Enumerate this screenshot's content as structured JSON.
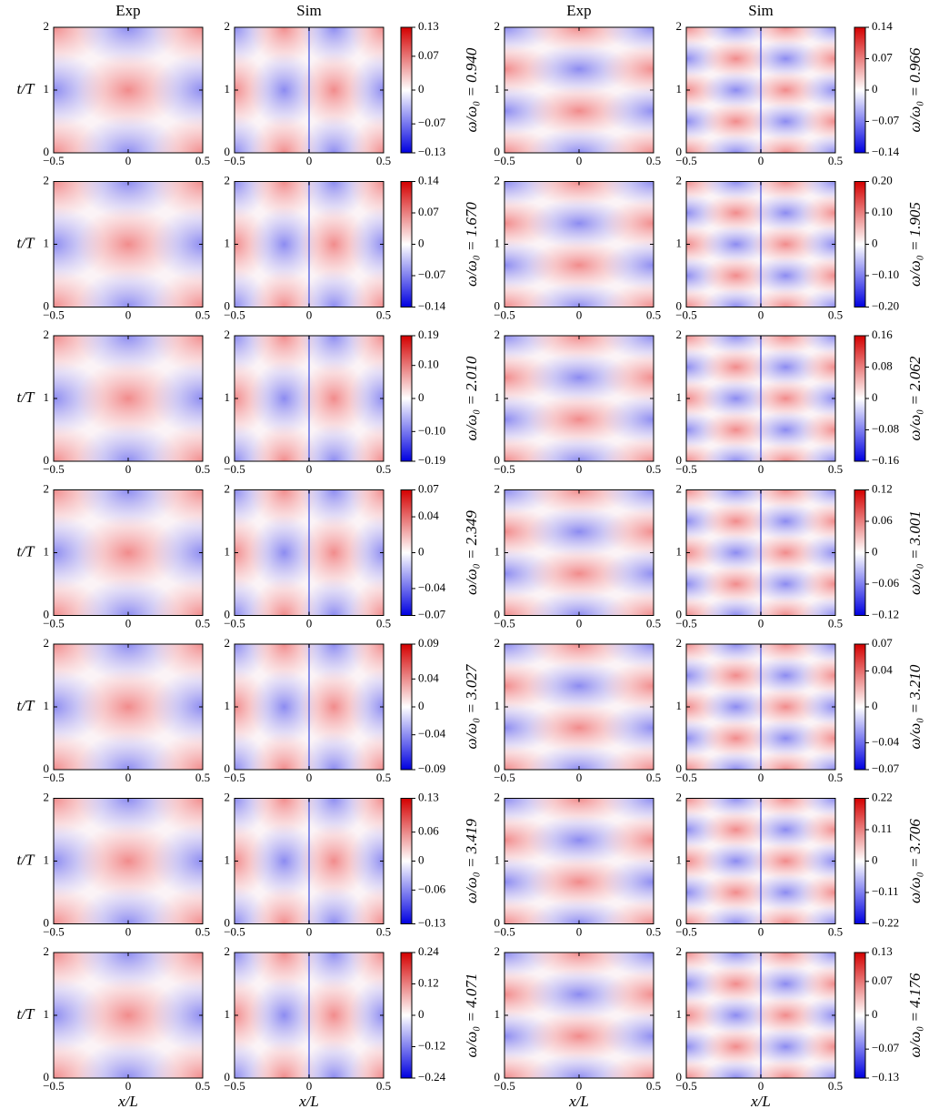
{
  "chart_data": [
    {
      "type": "heatmap",
      "panel_titles": [
        "Exp",
        "Sim"
      ],
      "ylabel": "t/T",
      "annotation": "ω/ω₀ = 0.940",
      "xlim": [
        -0.5,
        0.5
      ],
      "ylim": [
        0,
        2
      ],
      "xticks": [
        {
          "value": -0.5,
          "label": "−0.5"
        },
        0,
        0.5
      ],
      "yticks": [
        0,
        1,
        2
      ],
      "colorbar": {
        "lim": [
          -0.13,
          0.13
        ],
        "ticks": [
          0.13,
          0.07,
          0,
          {
            "value": -0.07,
            "label": "−0.07"
          },
          {
            "value": -0.13,
            "label": "−0.13"
          }
        ]
      }
    },
    {
      "type": "heatmap",
      "panel_titles": [
        "Exp",
        "Sim"
      ],
      "annotation": "ω/ω₀ = 0.966",
      "xlim": [
        -0.5,
        0.5
      ],
      "ylim": [
        0,
        2
      ],
      "xticks": [
        {
          "value": -0.5,
          "label": "−0.5"
        },
        0,
        0.5
      ],
      "yticks": [
        0,
        1,
        2
      ],
      "colorbar": {
        "lim": [
          -0.14,
          0.14
        ],
        "ticks": [
          0.14,
          0.07,
          0,
          {
            "value": -0.07,
            "label": "−0.07"
          },
          {
            "value": -0.14,
            "label": "−0.14"
          }
        ]
      }
    },
    {
      "type": "heatmap",
      "ylabel": "t/T",
      "annotation": "ω/ω₀ = 1.670",
      "xlim": [
        -0.5,
        0.5
      ],
      "ylim": [
        0,
        2
      ],
      "xticks": [
        {
          "value": -0.5,
          "label": "−0.5"
        },
        0,
        0.5
      ],
      "yticks": [
        0,
        1,
        2
      ],
      "colorbar": {
        "lim": [
          -0.14,
          0.14
        ],
        "ticks": [
          0.14,
          0.07,
          0,
          {
            "value": -0.07,
            "label": "−0.07"
          },
          {
            "value": -0.14,
            "label": "−0.14"
          }
        ]
      }
    },
    {
      "type": "heatmap",
      "annotation": "ω/ω₀ = 1.905",
      "xlim": [
        -0.5,
        0.5
      ],
      "ylim": [
        0,
        2
      ],
      "xticks": [
        {
          "value": -0.5,
          "label": "−0.5"
        },
        0,
        0.5
      ],
      "yticks": [
        0,
        1,
        2
      ],
      "colorbar": {
        "lim": [
          -0.2,
          0.2
        ],
        "ticks": [
          {
            "value": 0.2,
            "label": "0.20"
          },
          {
            "value": 0.1,
            "label": "0.10"
          },
          0,
          {
            "value": -0.1,
            "label": "−0.10"
          },
          {
            "value": -0.2,
            "label": "−0.20"
          }
        ]
      }
    },
    {
      "type": "heatmap",
      "ylabel": "t/T",
      "annotation": "ω/ω₀ = 2.010",
      "xlim": [
        -0.5,
        0.5
      ],
      "ylim": [
        0,
        2
      ],
      "xticks": [
        {
          "value": -0.5,
          "label": "−0.5"
        },
        0,
        0.5
      ],
      "yticks": [
        0,
        1,
        2
      ],
      "colorbar": {
        "lim": [
          -0.19,
          0.19
        ],
        "ticks": [
          0.19,
          {
            "value": 0.1,
            "label": "0.10"
          },
          0,
          {
            "value": -0.1,
            "label": "−0.10"
          },
          {
            "value": -0.19,
            "label": "−0.19"
          }
        ]
      }
    },
    {
      "type": "heatmap",
      "annotation": "ω/ω₀ = 2.062",
      "xlim": [
        -0.5,
        0.5
      ],
      "ylim": [
        0,
        2
      ],
      "xticks": [
        {
          "value": -0.5,
          "label": "−0.5"
        },
        0,
        0.5
      ],
      "yticks": [
        0,
        1,
        2
      ],
      "colorbar": {
        "lim": [
          -0.16,
          0.16
        ],
        "ticks": [
          0.16,
          0.08,
          0,
          {
            "value": -0.08,
            "label": "−0.08"
          },
          {
            "value": -0.16,
            "label": "−0.16"
          }
        ]
      }
    },
    {
      "type": "heatmap",
      "ylabel": "t/T",
      "annotation": "ω/ω₀ = 2.349",
      "xlim": [
        -0.5,
        0.5
      ],
      "ylim": [
        0,
        2
      ],
      "xticks": [
        {
          "value": -0.5,
          "label": "−0.5"
        },
        0,
        0.5
      ],
      "yticks": [
        0,
        1,
        2
      ],
      "colorbar": {
        "lim": [
          -0.07,
          0.07
        ],
        "ticks": [
          0.07,
          0.04,
          0,
          {
            "value": -0.04,
            "label": "−0.04"
          },
          {
            "value": -0.07,
            "label": "−0.07"
          }
        ]
      }
    },
    {
      "type": "heatmap",
      "annotation": "ω/ω₀ = 3.001",
      "xlim": [
        -0.5,
        0.5
      ],
      "ylim": [
        0,
        2
      ],
      "xticks": [
        {
          "value": -0.5,
          "label": "−0.5"
        },
        0,
        0.5
      ],
      "yticks": [
        0,
        1,
        2
      ],
      "colorbar": {
        "lim": [
          -0.12,
          0.12
        ],
        "ticks": [
          0.12,
          0.06,
          0,
          {
            "value": -0.06,
            "label": "−0.06"
          },
          {
            "value": -0.12,
            "label": "−0.12"
          }
        ]
      }
    },
    {
      "type": "heatmap",
      "ylabel": "t/T",
      "annotation": "ω/ω₀ = 3.027",
      "xlim": [
        -0.5,
        0.5
      ],
      "ylim": [
        0,
        2
      ],
      "xticks": [
        {
          "value": -0.5,
          "label": "−0.5"
        },
        0,
        0.5
      ],
      "yticks": [
        0,
        1,
        2
      ],
      "colorbar": {
        "lim": [
          -0.09,
          0.09
        ],
        "ticks": [
          0.09,
          0.04,
          0,
          {
            "value": -0.04,
            "label": "−0.04"
          },
          {
            "value": -0.09,
            "label": "−0.09"
          }
        ]
      }
    },
    {
      "type": "heatmap",
      "annotation": "ω/ω₀ = 3.210",
      "xlim": [
        -0.5,
        0.5
      ],
      "ylim": [
        0,
        2
      ],
      "xticks": [
        {
          "value": -0.5,
          "label": "−0.5"
        },
        0,
        0.5
      ],
      "yticks": [
        0,
        1,
        2
      ],
      "colorbar": {
        "lim": [
          -0.07,
          0.07
        ],
        "ticks": [
          0.07,
          0.04,
          0,
          {
            "value": -0.04,
            "label": "−0.04"
          },
          {
            "value": -0.07,
            "label": "−0.07"
          }
        ]
      }
    },
    {
      "type": "heatmap",
      "ylabel": "t/T",
      "annotation": "ω/ω₀ = 3.419",
      "xlim": [
        -0.5,
        0.5
      ],
      "ylim": [
        0,
        2
      ],
      "xticks": [
        {
          "value": -0.5,
          "label": "−0.5"
        },
        0,
        0.5
      ],
      "yticks": [
        0,
        1,
        2
      ],
      "colorbar": {
        "lim": [
          -0.13,
          0.13
        ],
        "ticks": [
          0.13,
          0.06,
          0,
          {
            "value": -0.06,
            "label": "−0.06"
          },
          {
            "value": -0.13,
            "label": "−0.13"
          }
        ]
      }
    },
    {
      "type": "heatmap",
      "annotation": "ω/ω₀ = 3.706",
      "xlim": [
        -0.5,
        0.5
      ],
      "ylim": [
        0,
        2
      ],
      "xticks": [
        {
          "value": -0.5,
          "label": "−0.5"
        },
        0,
        0.5
      ],
      "yticks": [
        0,
        1,
        2
      ],
      "colorbar": {
        "lim": [
          -0.22,
          0.22
        ],
        "ticks": [
          0.22,
          0.11,
          0,
          {
            "value": -0.11,
            "label": "−0.11"
          },
          {
            "value": -0.22,
            "label": "−0.22"
          }
        ]
      }
    },
    {
      "type": "heatmap",
      "ylabel": "t/T",
      "xlabel": "x/L",
      "annotation": "ω/ω₀ = 4.071",
      "xlim": [
        -0.5,
        0.5
      ],
      "ylim": [
        0,
        2
      ],
      "xticks": [
        {
          "value": -0.5,
          "label": "−0.5"
        },
        0,
        0.5
      ],
      "yticks": [
        0,
        1,
        2
      ],
      "colorbar": {
        "lim": [
          -0.24,
          0.24
        ],
        "ticks": [
          0.24,
          0.12,
          0,
          {
            "value": -0.12,
            "label": "−0.12"
          },
          {
            "value": -0.24,
            "label": "−0.24"
          }
        ]
      }
    },
    {
      "type": "heatmap",
      "xlabel": "x/L",
      "annotation": "ω/ω₀ = 4.176",
      "xlim": [
        -0.5,
        0.5
      ],
      "ylim": [
        0,
        2
      ],
      "xticks": [
        {
          "value": -0.5,
          "label": "−0.5"
        },
        0,
        0.5
      ],
      "yticks": [
        0,
        1,
        2
      ],
      "colorbar": {
        "lim": [
          -0.13,
          0.13
        ],
        "ticks": [
          0.13,
          0.07,
          0,
          {
            "value": -0.07,
            "label": "−0.07"
          },
          {
            "value": -0.13,
            "label": "−0.13"
          }
        ]
      }
    }
  ]
}
